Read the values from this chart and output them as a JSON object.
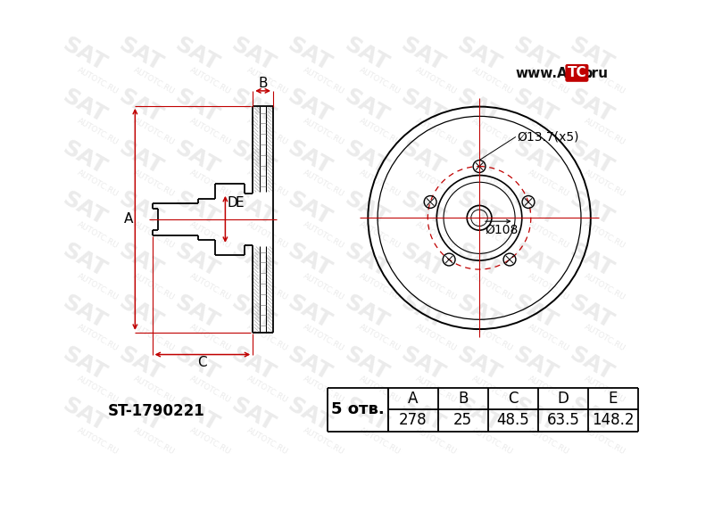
{
  "bg_color": "#ffffff",
  "part_number": "ST-1790221",
  "holes_label": "5 отв.",
  "red_color": "#c00000",
  "line_color": "#000000",
  "table_headers": [
    "A",
    "B",
    "C",
    "D",
    "E"
  ],
  "table_values": [
    "278",
    "25",
    "48.5",
    "63.5",
    "148.2"
  ],
  "wm_color": "#d8d8d8",
  "label_108": "Ø108",
  "label_137": "Ø13.7(x5)"
}
